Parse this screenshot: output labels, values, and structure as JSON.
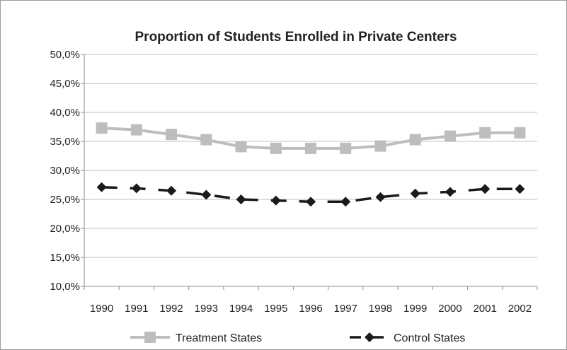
{
  "chart_data": {
    "type": "line",
    "title": "Proportion of Students Enrolled in Private Centers",
    "xlabel": "",
    "ylabel": "",
    "categories": [
      "1990",
      "1991",
      "1992",
      "1993",
      "1994",
      "1995",
      "1996",
      "1997",
      "1998",
      "1999",
      "2000",
      "2001",
      "2002"
    ],
    "ylim": [
      0.1,
      0.5
    ],
    "yticks": [
      0.1,
      0.15,
      0.2,
      0.25,
      0.3,
      0.35,
      0.4,
      0.45,
      0.5
    ],
    "ytick_labels": [
      "10,0%",
      "15,0%",
      "20,0%",
      "25,0%",
      "30,0%",
      "35,0%",
      "40,0%",
      "45,0%",
      "50,0%"
    ],
    "grid": true,
    "legend_position": "bottom",
    "series": [
      {
        "name": "Treatment States",
        "values": [
          0.373,
          0.37,
          0.362,
          0.353,
          0.341,
          0.338,
          0.338,
          0.338,
          0.342,
          0.353,
          0.359,
          0.365,
          0.365
        ],
        "color": "#bdbdbd",
        "marker": "square",
        "line_style": "solid"
      },
      {
        "name": "Control States",
        "values": [
          0.271,
          0.269,
          0.265,
          0.258,
          0.25,
          0.248,
          0.246,
          0.246,
          0.254,
          0.26,
          0.263,
          0.268,
          0.268
        ],
        "color": "#1a1a1a",
        "marker": "diamond",
        "line_style": "dashed"
      }
    ]
  },
  "colors": {
    "gridline": "#bfbfbf",
    "axis": "#8c8c8c",
    "frame": "#9a9a9a"
  }
}
